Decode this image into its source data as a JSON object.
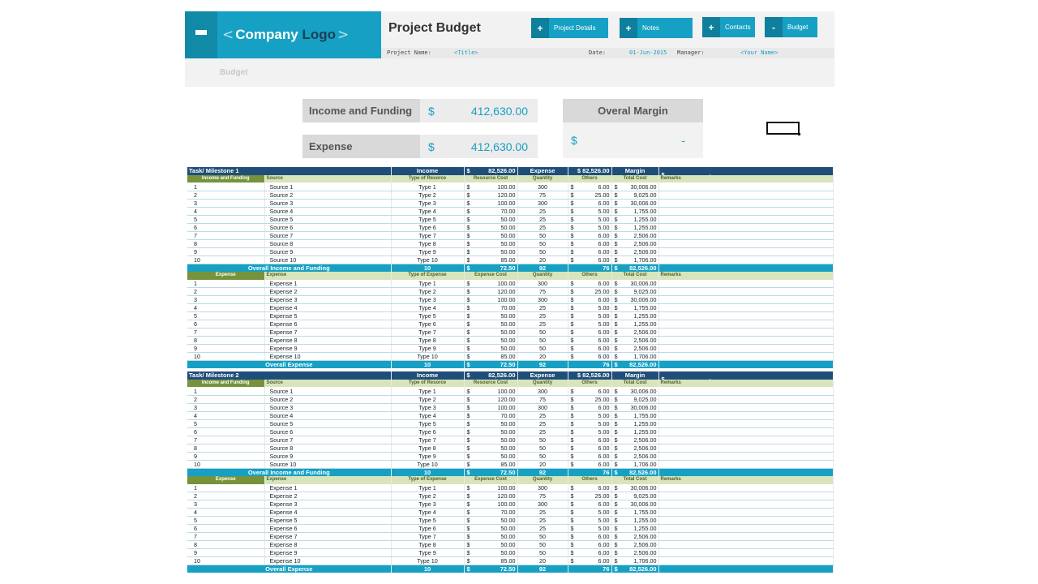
{
  "header": {
    "logo_left_chevron": "<",
    "logo_company": "Company",
    "logo_word": "Logo",
    "logo_right_chevron": ">",
    "title": "Project Budget",
    "buttons": [
      {
        "sign": "+",
        "label": "Project Details"
      },
      {
        "sign": "+",
        "label": "Notes"
      },
      {
        "sign": "+",
        "label": "Contacts"
      },
      {
        "sign": "-",
        "label": "Budget"
      }
    ],
    "info": {
      "project_name_label": "Project Name:",
      "project_name_value": "<Title>",
      "date_label": "Date:",
      "date_value": "01-Jun-2015",
      "manager_label": "Manager:",
      "manager_value": "<Your Name>"
    },
    "sub_tab": "Budget"
  },
  "summary": {
    "income_label": "Income and Funding",
    "income_currency": "$",
    "income_value": "412,630.00",
    "expense_label": "Expense",
    "expense_currency": "$",
    "expense_value": "412,630.00",
    "margin_label": "Overal Margin",
    "margin_currency": "$",
    "margin_value": "-"
  },
  "milestones": [
    {
      "title": "Task/ Milestone 1",
      "income_label": "Income",
      "income_value": "82,526.00",
      "expense_label": "Expense",
      "expense_value": "$ 82,526.00",
      "margin_label": "Margin",
      "margin_value": "-",
      "income_section": {
        "headers": [
          "Income and Funding",
          "Source",
          "Type of Resorce",
          "Resource Cost",
          "Quantity",
          "Others",
          "Total Cost",
          "Remarks"
        ],
        "rows": [
          [
            "1",
            "Source 1",
            "Type 1",
            "100.00",
            "300",
            "6.00",
            "30,006.00"
          ],
          [
            "2",
            "Source 2",
            "Type 2",
            "120.00",
            "75",
            "25.00",
            "9,025.00"
          ],
          [
            "3",
            "Source 3",
            "Type 3",
            "100.00",
            "300",
            "6.00",
            "30,006.00"
          ],
          [
            "4",
            "Source 4",
            "Type 4",
            "70.00",
            "25",
            "5.00",
            "1,755.00"
          ],
          [
            "5",
            "Source 5",
            "Type 5",
            "50.00",
            "25",
            "5.00",
            "1,255.00"
          ],
          [
            "6",
            "Source 6",
            "Type 6",
            "50.00",
            "25",
            "5.00",
            "1,255.00"
          ],
          [
            "7",
            "Source 7",
            "Type 7",
            "50.00",
            "50",
            "6.00",
            "2,506.00"
          ],
          [
            "8",
            "Source 8",
            "Type 8",
            "50.00",
            "50",
            "6.00",
            "2,506.00"
          ],
          [
            "9",
            "Source 9",
            "Type 9",
            "50.00",
            "50",
            "6.00",
            "2,506.00"
          ],
          [
            "10",
            "Source 10",
            "Type 10",
            "85.00",
            "20",
            "6.00",
            "1,706.00"
          ]
        ],
        "total": [
          "Overall Income and Funding",
          "10",
          "72.50",
          "92",
          "76",
          "82,526.00"
        ]
      },
      "expense_section": {
        "headers": [
          "Expense",
          "Expense",
          "Type of Expense",
          "Expense Cost",
          "Quantity",
          "Others",
          "Total Cost",
          "Remarks"
        ],
        "rows": [
          [
            "1",
            "Expense 1",
            "Type 1",
            "100.00",
            "300",
            "6.00",
            "30,006.00"
          ],
          [
            "2",
            "Expense 2",
            "Type 2",
            "120.00",
            "75",
            "25.00",
            "9,025.00"
          ],
          [
            "3",
            "Expense 3",
            "Type 3",
            "100.00",
            "300",
            "6.00",
            "30,006.00"
          ],
          [
            "4",
            "Expense 4",
            "Type 4",
            "70.00",
            "25",
            "5.00",
            "1,755.00"
          ],
          [
            "5",
            "Expense 5",
            "Type 5",
            "50.00",
            "25",
            "5.00",
            "1,255.00"
          ],
          [
            "6",
            "Expense 6",
            "Type 6",
            "50.00",
            "25",
            "5.00",
            "1,255.00"
          ],
          [
            "7",
            "Expense 7",
            "Type 7",
            "50.00",
            "50",
            "6.00",
            "2,506.00"
          ],
          [
            "8",
            "Expense 8",
            "Type 8",
            "50.00",
            "50",
            "6.00",
            "2,506.00"
          ],
          [
            "9",
            "Expense 9",
            "Type 9",
            "50.00",
            "50",
            "6.00",
            "2,506.00"
          ],
          [
            "10",
            "Expense 10",
            "Type 10",
            "85.00",
            "20",
            "6.00",
            "1,706.00"
          ]
        ],
        "total": [
          "Overall Expense",
          "10",
          "72.50",
          "92",
          "76",
          "82,526.00"
        ]
      }
    },
    {
      "title": "Task/ Milestone 2",
      "income_label": "Income",
      "income_value": "82,526.00",
      "expense_label": "Expense",
      "expense_value": "$ 82,526.00",
      "margin_label": "Margin",
      "margin_value": "-",
      "income_section": {
        "headers": [
          "Income and Funding",
          "Source",
          "Type of Resorce",
          "Resource Cost",
          "Quantity",
          "Others",
          "Total Cost",
          "Remarks"
        ],
        "rows": [
          [
            "1",
            "Source 1",
            "Type 1",
            "100.00",
            "300",
            "6.00",
            "30,006.00"
          ],
          [
            "2",
            "Source 2",
            "Type 2",
            "120.00",
            "75",
            "25.00",
            "9,025.00"
          ],
          [
            "3",
            "Source 3",
            "Type 3",
            "100.00",
            "300",
            "6.00",
            "30,006.00"
          ],
          [
            "4",
            "Source 4",
            "Type 4",
            "70.00",
            "25",
            "5.00",
            "1,755.00"
          ],
          [
            "5",
            "Source 5",
            "Type 5",
            "50.00",
            "25",
            "5.00",
            "1,255.00"
          ],
          [
            "6",
            "Source 6",
            "Type 6",
            "50.00",
            "25",
            "5.00",
            "1,255.00"
          ],
          [
            "7",
            "Source 7",
            "Type 7",
            "50.00",
            "50",
            "6.00",
            "2,506.00"
          ],
          [
            "8",
            "Source 8",
            "Type 8",
            "50.00",
            "50",
            "6.00",
            "2,506.00"
          ],
          [
            "9",
            "Source 9",
            "Type 9",
            "50.00",
            "50",
            "6.00",
            "2,506.00"
          ],
          [
            "10",
            "Source 10",
            "Type 10",
            "85.00",
            "20",
            "6.00",
            "1,706.00"
          ]
        ],
        "total": [
          "Overall Income and Funding",
          "10",
          "72.50",
          "92",
          "76",
          "82,526.00"
        ]
      },
      "expense_section": {
        "headers": [
          "Expense",
          "Expense",
          "Type of Expense",
          "Expense Cost",
          "Quantity",
          "Others",
          "Total Cost",
          "Remarks"
        ],
        "rows": [
          [
            "1",
            "Expense 1",
            "Type 1",
            "100.00",
            "300",
            "6.00",
            "30,006.00"
          ],
          [
            "2",
            "Expense 2",
            "Type 2",
            "120.00",
            "75",
            "25.00",
            "9,025.00"
          ],
          [
            "3",
            "Expense 3",
            "Type 3",
            "100.00",
            "300",
            "6.00",
            "30,006.00"
          ],
          [
            "4",
            "Expense 4",
            "Type 4",
            "70.00",
            "25",
            "5.00",
            "1,755.00"
          ],
          [
            "5",
            "Expense 5",
            "Type 5",
            "50.00",
            "25",
            "5.00",
            "1,255.00"
          ],
          [
            "6",
            "Expense 6",
            "Type 6",
            "50.00",
            "25",
            "5.00",
            "1,255.00"
          ],
          [
            "7",
            "Expense 7",
            "Type 7",
            "50.00",
            "50",
            "6.00",
            "2,506.00"
          ],
          [
            "8",
            "Expense 8",
            "Type 8",
            "50.00",
            "50",
            "6.00",
            "2,506.00"
          ],
          [
            "9",
            "Expense 9",
            "Type 9",
            "50.00",
            "50",
            "6.00",
            "2,506.00"
          ],
          [
            "10",
            "Expense 10",
            "Type 10",
            "85.00",
            "20",
            "6.00",
            "1,706.00"
          ]
        ],
        "total": [
          "Overall Expense",
          "10",
          "72.50",
          "92",
          "76",
          "82,526.00"
        ]
      }
    }
  ],
  "currency_symbol": "$",
  "icons": {
    "menu": "hamburger-icon",
    "plus": "plus-icon",
    "minus": "minus-icon"
  },
  "colors": {
    "brand": "#16a0c3",
    "navy": "#1f4e79",
    "olive": "#76933c",
    "section": "#d8e4bc"
  }
}
